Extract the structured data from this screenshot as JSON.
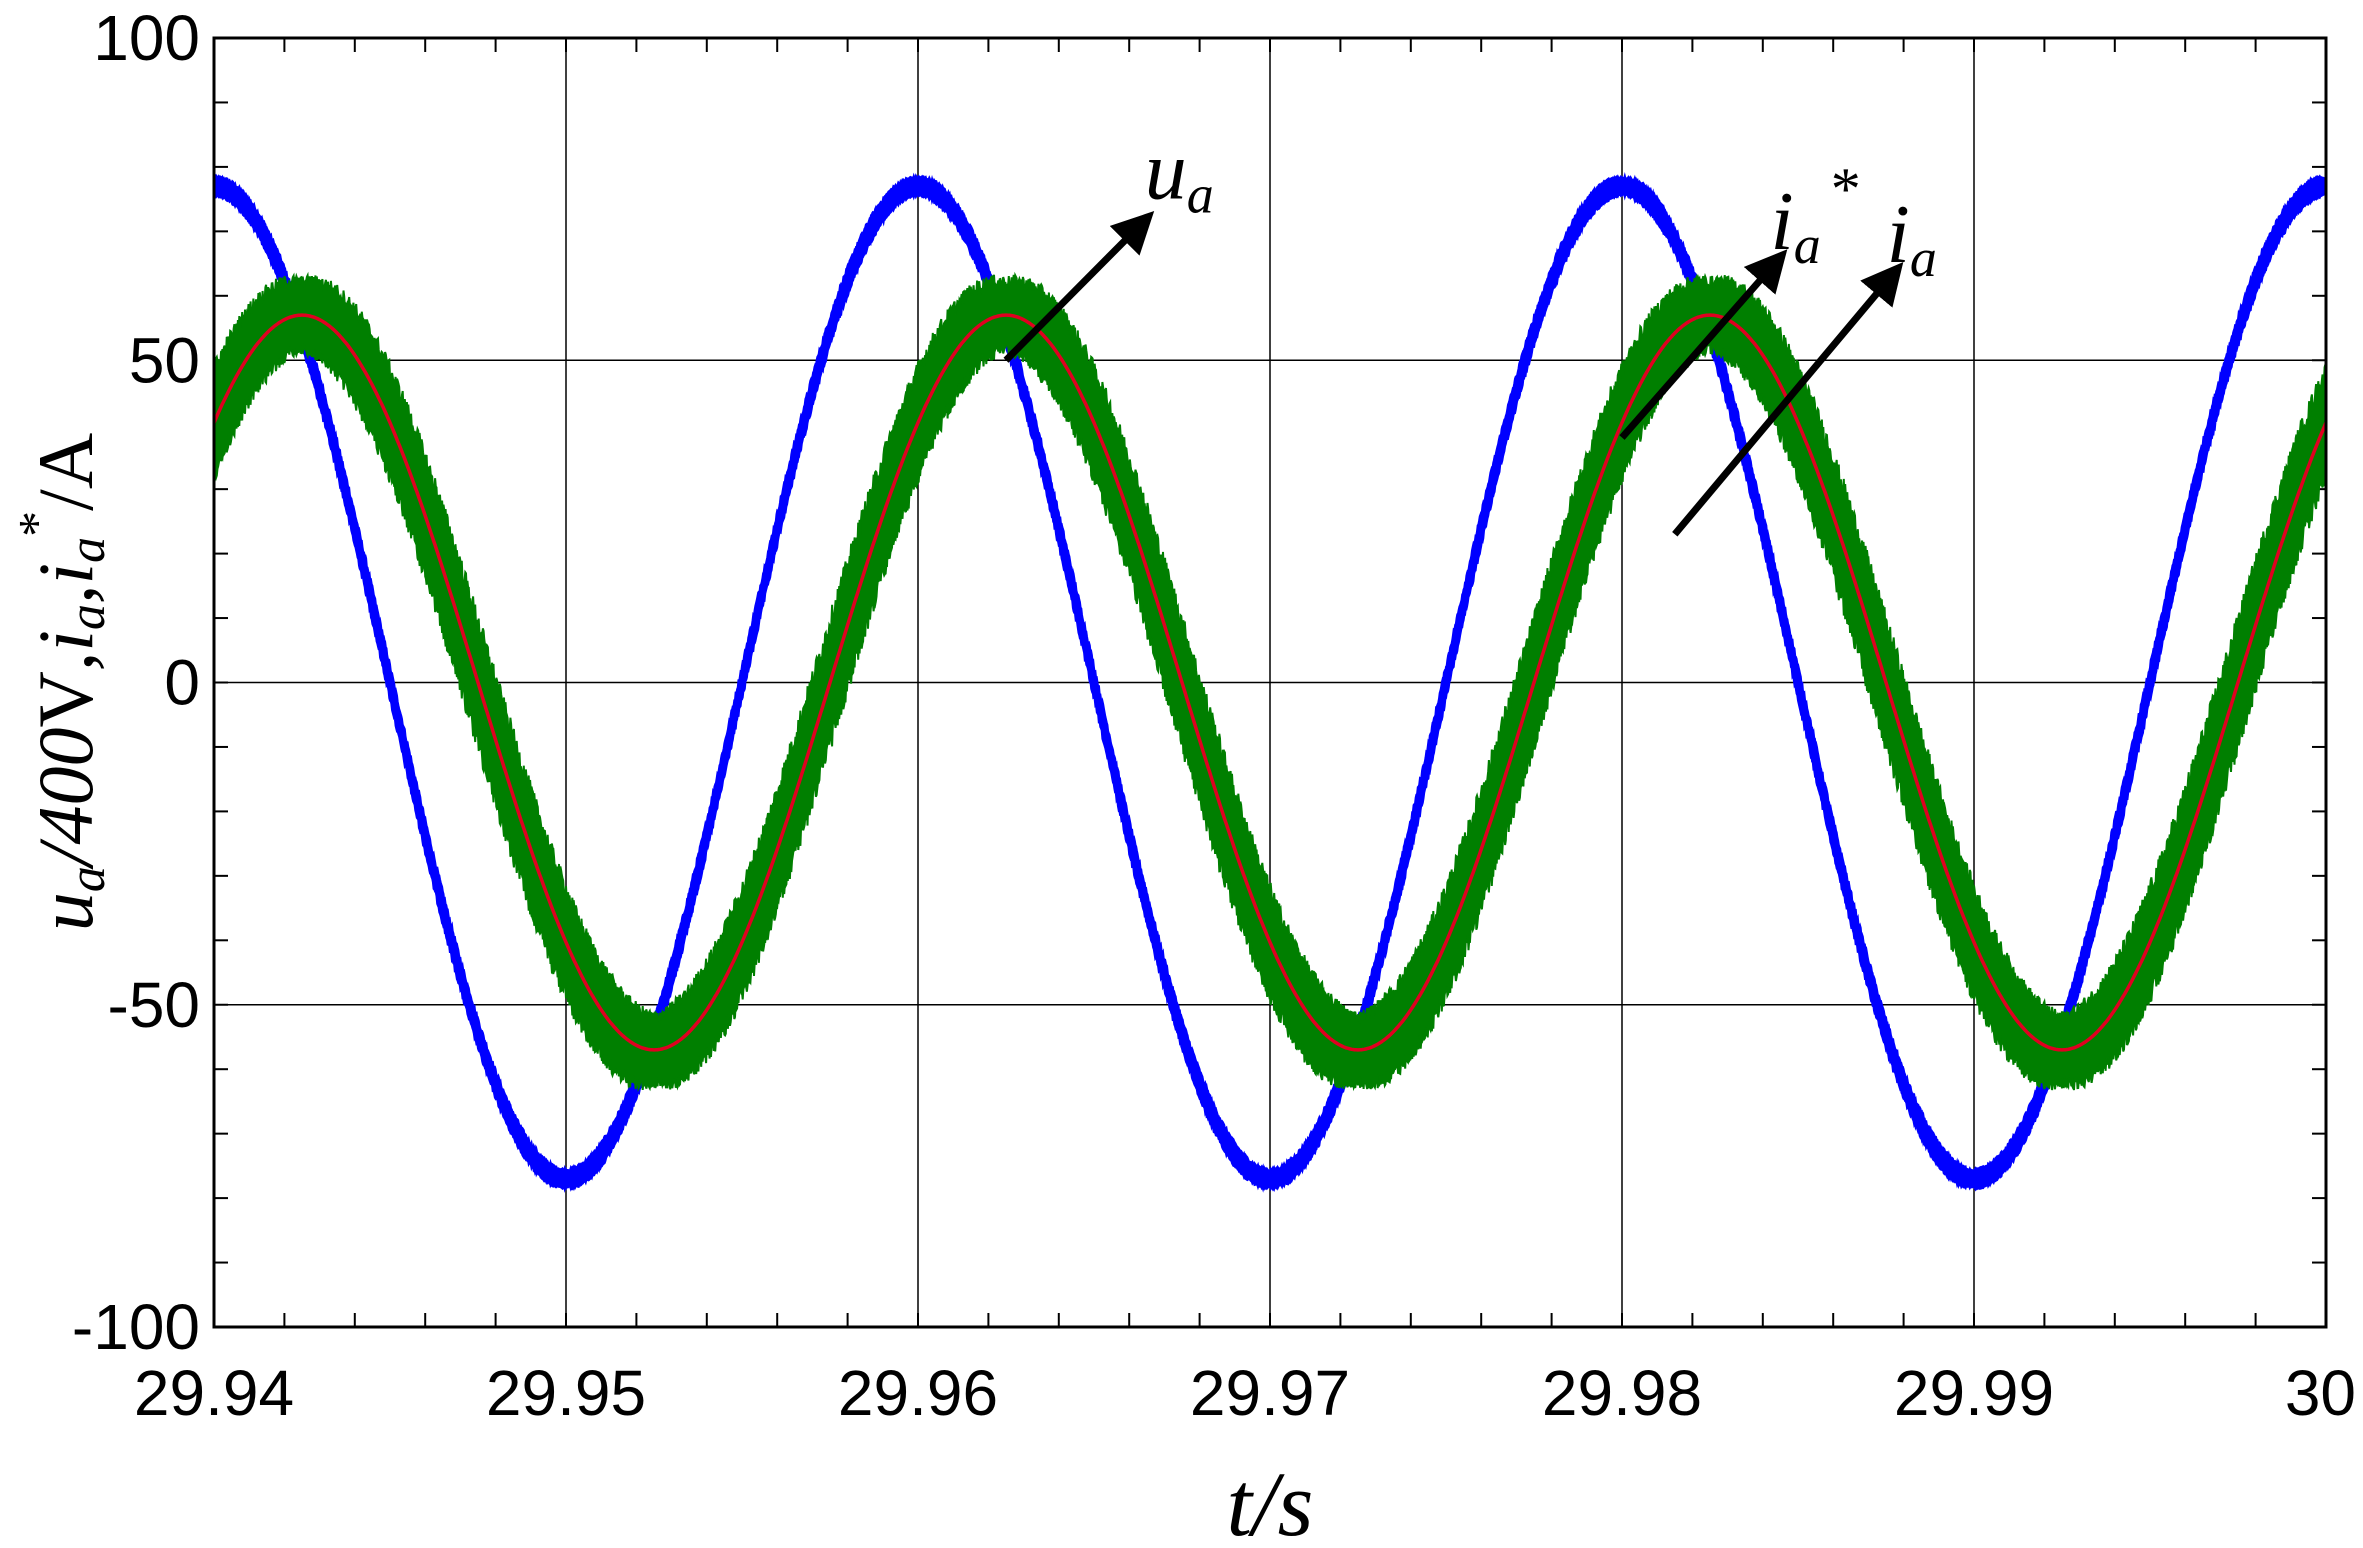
{
  "chart_data": {
    "type": "line",
    "xlabel": "t/s",
    "ylabel": {
      "u_symbol": "u",
      "u_sub": "a",
      "u_rest": "/400",
      "u_unit": "V",
      "sep1": ",",
      "i_symbol": "i",
      "i_sub": "a",
      "sep2": ",",
      "iref_symbol": "i",
      "iref_sub": "a",
      "iref_sup": "*",
      "unit": "/A"
    },
    "xlim": [
      29.94,
      30
    ],
    "ylim": [
      -100,
      100
    ],
    "x_ticks": [
      "29.94",
      "29.95",
      "29.96",
      "29.97",
      "29.98",
      "29.99",
      "30"
    ],
    "y_ticks": [
      "100",
      "50",
      "0",
      "-50",
      "-100"
    ],
    "grid": true,
    "frequency_hz": 50,
    "series": [
      {
        "name": "u_a",
        "color": "#0000ff",
        "amplitude": 77,
        "phase_deg": 90,
        "ripple": 3
      },
      {
        "name": "i_a",
        "color": "#007f00",
        "amplitude": 57,
        "phase_deg": 45,
        "ripple": 11
      },
      {
        "name": "i_a*",
        "color": "#e00020",
        "amplitude": 57,
        "phase_deg": 45,
        "ripple": 0
      }
    ],
    "annotations": [
      {
        "label": "u",
        "sub": "a",
        "sup": "",
        "from": [
          29.9625,
          50
        ],
        "to": [
          29.9665,
          72
        ]
      },
      {
        "label": "i",
        "sub": "a",
        "sup": "*",
        "from": [
          29.98,
          38
        ],
        "to": [
          29.9845,
          66
        ]
      },
      {
        "label": "i",
        "sub": "a",
        "sup": "",
        "from": [
          29.9815,
          23
        ],
        "to": [
          29.9878,
          64
        ]
      }
    ]
  }
}
